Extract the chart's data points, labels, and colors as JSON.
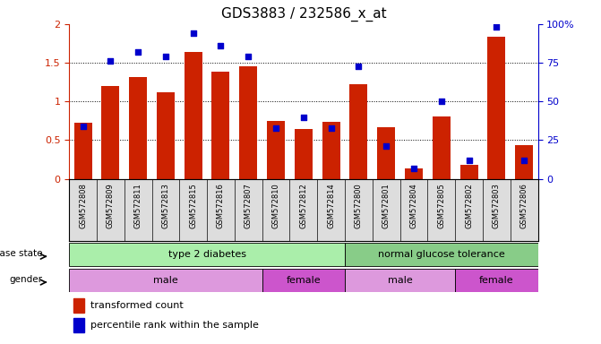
{
  "title": "GDS3883 / 232586_x_at",
  "samples": [
    "GSM572808",
    "GSM572809",
    "GSM572811",
    "GSM572813",
    "GSM572815",
    "GSM572816",
    "GSM572807",
    "GSM572810",
    "GSM572812",
    "GSM572814",
    "GSM572800",
    "GSM572801",
    "GSM572804",
    "GSM572805",
    "GSM572802",
    "GSM572803",
    "GSM572806"
  ],
  "bar_values": [
    0.72,
    1.2,
    1.32,
    1.12,
    1.64,
    1.38,
    1.46,
    0.75,
    0.64,
    0.74,
    1.22,
    0.67,
    0.13,
    0.81,
    0.18,
    1.84,
    0.44
  ],
  "dot_values": [
    34,
    76,
    82,
    79,
    94,
    86,
    79,
    33,
    40,
    33,
    73,
    21,
    7,
    50,
    12,
    98,
    12
  ],
  "bar_color": "#cc2200",
  "dot_color": "#0000cc",
  "ylim_left": [
    0,
    2
  ],
  "ylim_right": [
    0,
    100
  ],
  "yticks_left": [
    0,
    0.5,
    1.0,
    1.5,
    2.0
  ],
  "ytick_labels_left": [
    "0",
    "0.5",
    "1",
    "1.5",
    "2"
  ],
  "yticks_right": [
    0,
    25,
    50,
    75,
    100
  ],
  "ytick_labels_right": [
    "0",
    "25",
    "50",
    "75",
    "100%"
  ],
  "ds_regions": [
    [
      0,
      10,
      "type 2 diabetes",
      "#aaeeaa"
    ],
    [
      10,
      17,
      "normal glucose tolerance",
      "#88cc88"
    ]
  ],
  "g_regions": [
    [
      0,
      7,
      "male",
      "#dd99dd"
    ],
    [
      7,
      10,
      "female",
      "#cc55cc"
    ],
    [
      10,
      14,
      "male",
      "#dd99dd"
    ],
    [
      14,
      17,
      "female",
      "#cc55cc"
    ]
  ],
  "legend_bar": "transformed count",
  "legend_dot": "percentile rank within the sample"
}
